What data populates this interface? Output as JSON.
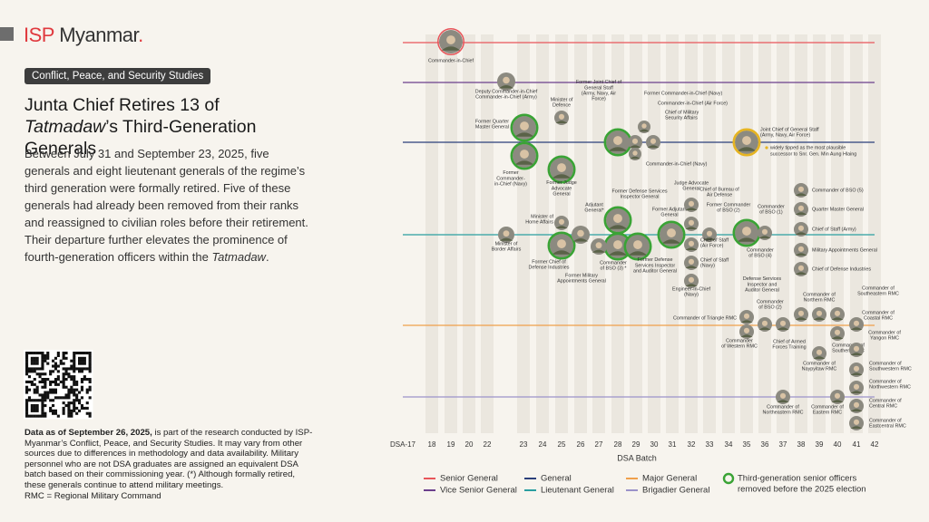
{
  "header": {
    "logo_isp": "ISP",
    "logo_rest": "Myanmar",
    "logo_dot": "."
  },
  "tag": "Conflict, Peace, and Security Studies",
  "title": {
    "before": "Junta Chief Retires 13 of ",
    "italic": "Tatmadaw",
    "after": "’s Third-Generation Generals"
  },
  "intro": {
    "before": "Between July 31 and September 23, 2025, five generals and eight lieutenant generals of the regime’s third generation were formally retired. Five of these generals had already been removed from their ranks and reassigned to civilian roles before their retirement. Their departure further elevates the prominence of fourth-generation officers within the ",
    "italic": "Tatmadaw",
    "after": "."
  },
  "footnote": {
    "bold": "Data as of September 26, 2025,",
    "text": " is part of the research conducted by ISP-Myanmar’s Conflict, Peace, and Security Studies. It may vary from other sources due to differences in methodology and data availability. Military personnel who are not DSA graduates are assigned an equivalent DSA batch based on their commissioning year. (*) Although formally retired, these generals continue to attend military meetings.",
    "rmc": "RMC = Regional Military Command"
  },
  "axis": {
    "title": "DSA Batch",
    "ticks": [
      "DSA-17",
      "18",
      "19",
      "20",
      "22",
      "23",
      "24",
      "25",
      "26",
      "27",
      "28",
      "29",
      "30",
      "31",
      "32",
      "33",
      "34",
      "35",
      "36",
      "37",
      "38",
      "39",
      "40",
      "41",
      "42"
    ]
  },
  "ranks": [
    {
      "name": "Senior General",
      "color": "#e8555a"
    },
    {
      "name": "Vice Senior General",
      "color": "#6b3f8c"
    },
    {
      "name": "General",
      "color": "#2b3f7a"
    },
    {
      "name": "Lieutenant General",
      "color": "#2a9ea0"
    },
    {
      "name": "Major General",
      "color": "#f0a04b"
    },
    {
      "name": "Brigadier General",
      "color": "#9b92c9"
    }
  ],
  "legend_ring": [
    "Third-generation senior officers",
    "removed before the 2025 election"
  ],
  "annotation": [
    "widely tipped as the most plausible",
    "successor to Snr. Gen. Min Aung Hlaing"
  ],
  "people": [
    {
      "label": [
        "Commander-in-Chief"
      ]
    },
    {
      "label": [
        "Deputy Commander-in-Chief",
        "Commander-in-Chief (Army)"
      ]
    },
    {
      "label": [
        "Former Quarter",
        "Master General"
      ]
    },
    {
      "label": [
        "Minister of",
        "Defence"
      ]
    },
    {
      "label": [
        "Former Joint Chief of",
        "General Staff",
        "(Army, Navy, Air",
        "Force)"
      ]
    },
    {
      "label": [
        "Former Commander-in-Chief (Navy)"
      ]
    },
    {
      "label": [
        "Commander-in-Chief (Air Force)"
      ]
    },
    {
      "label": [
        "Chief of Military",
        "Security Affairs"
      ]
    },
    {
      "label": [
        "Commander-in-Chief (Navy)"
      ]
    },
    {
      "label": [
        "Former",
        "Commander-",
        "in-Chief (Navy)"
      ]
    },
    {
      "label": [
        "Former Judge",
        "Advocate",
        "General"
      ]
    },
    {
      "label": [
        "Joint Chief of General Staff",
        "(Army, Navy, Air Force)"
      ]
    },
    {
      "label": [
        "Minister of",
        "Border Affairs"
      ]
    },
    {
      "label": [
        "Minister of",
        "Home Affairs"
      ]
    },
    {
      "label": [
        "Former Chief of",
        "Defense Industries"
      ]
    },
    {
      "label": [
        "Adjutant",
        "General*"
      ]
    },
    {
      "label": [
        "Former Defense Services",
        "Inspector General"
      ]
    },
    {
      "label": [
        "Commander",
        "of BSO (3) *"
      ]
    },
    {
      "label": [
        "Former Military",
        "Appointments General"
      ]
    },
    {
      "label": [
        "Former Defense",
        "Services Inspector",
        "and Auditor General"
      ]
    },
    {
      "label": [
        "Former Adjutant",
        "General"
      ]
    },
    {
      "label": [
        "Judge Advocate",
        "General"
      ]
    },
    {
      "label": [
        "Chief of Bureau of",
        "Air Defense"
      ]
    },
    {
      "label": [
        "Former Commander",
        "of BSO (2)"
      ]
    },
    {
      "label": [
        "Chief of Staff",
        "(Air Force)"
      ]
    },
    {
      "label": [
        "Chief of Staff",
        "(Navy)"
      ]
    },
    {
      "label": [
        "Engineer-in-Chief",
        "(Navy)"
      ]
    },
    {
      "label": [
        "Commander",
        "of BSO (4)"
      ]
    },
    {
      "label": [
        "Commander",
        "of BSO (1)"
      ]
    },
    {
      "label": [
        "Commander of BSO (5)"
      ]
    },
    {
      "label": [
        "Quarter Master General"
      ]
    },
    {
      "label": [
        "Chief of Staff (Army)"
      ]
    },
    {
      "label": [
        "Military Appointments General"
      ]
    },
    {
      "label": [
        "Chief of Defense Industries"
      ]
    },
    {
      "label": [
        "Commander of Triangle RMC"
      ]
    },
    {
      "label": [
        "Commander",
        "of Western RMC"
      ]
    },
    {
      "label": [
        "Defense Services",
        "Inspector and",
        "Auditor General"
      ]
    },
    {
      "label": [
        "Commander",
        "of BSO (2)"
      ]
    },
    {
      "label": [
        "Chief of Armed",
        "Forces Training"
      ]
    },
    {
      "label": [
        "Commander of",
        "Northern RMC"
      ]
    },
    {
      "label": [
        "Commander of",
        "Naypyitaw RMC"
      ]
    },
    {
      "label": [
        "Commander of",
        "Southern RMC"
      ]
    },
    {
      "label": [
        "Commander of",
        "Southeastern RMC"
      ]
    },
    {
      "label": [
        "Commander of",
        "Coastal RMC"
      ]
    },
    {
      "label": [
        "Commander of",
        "Yangon RMC"
      ]
    },
    {
      "label": [
        "Commander of",
        "Southwestern RMC"
      ]
    },
    {
      "label": [
        "Commander of",
        "Northeastern RMC"
      ]
    },
    {
      "label": [
        "Commander of",
        "Eastern RMC"
      ]
    },
    {
      "label": [
        "Commander of",
        "Northwestern RMC"
      ]
    },
    {
      "label": [
        "Commander of",
        "Central RMC"
      ]
    },
    {
      "label": [
        "Commander of",
        "Eastcentral RMC"
      ]
    }
  ]
}
